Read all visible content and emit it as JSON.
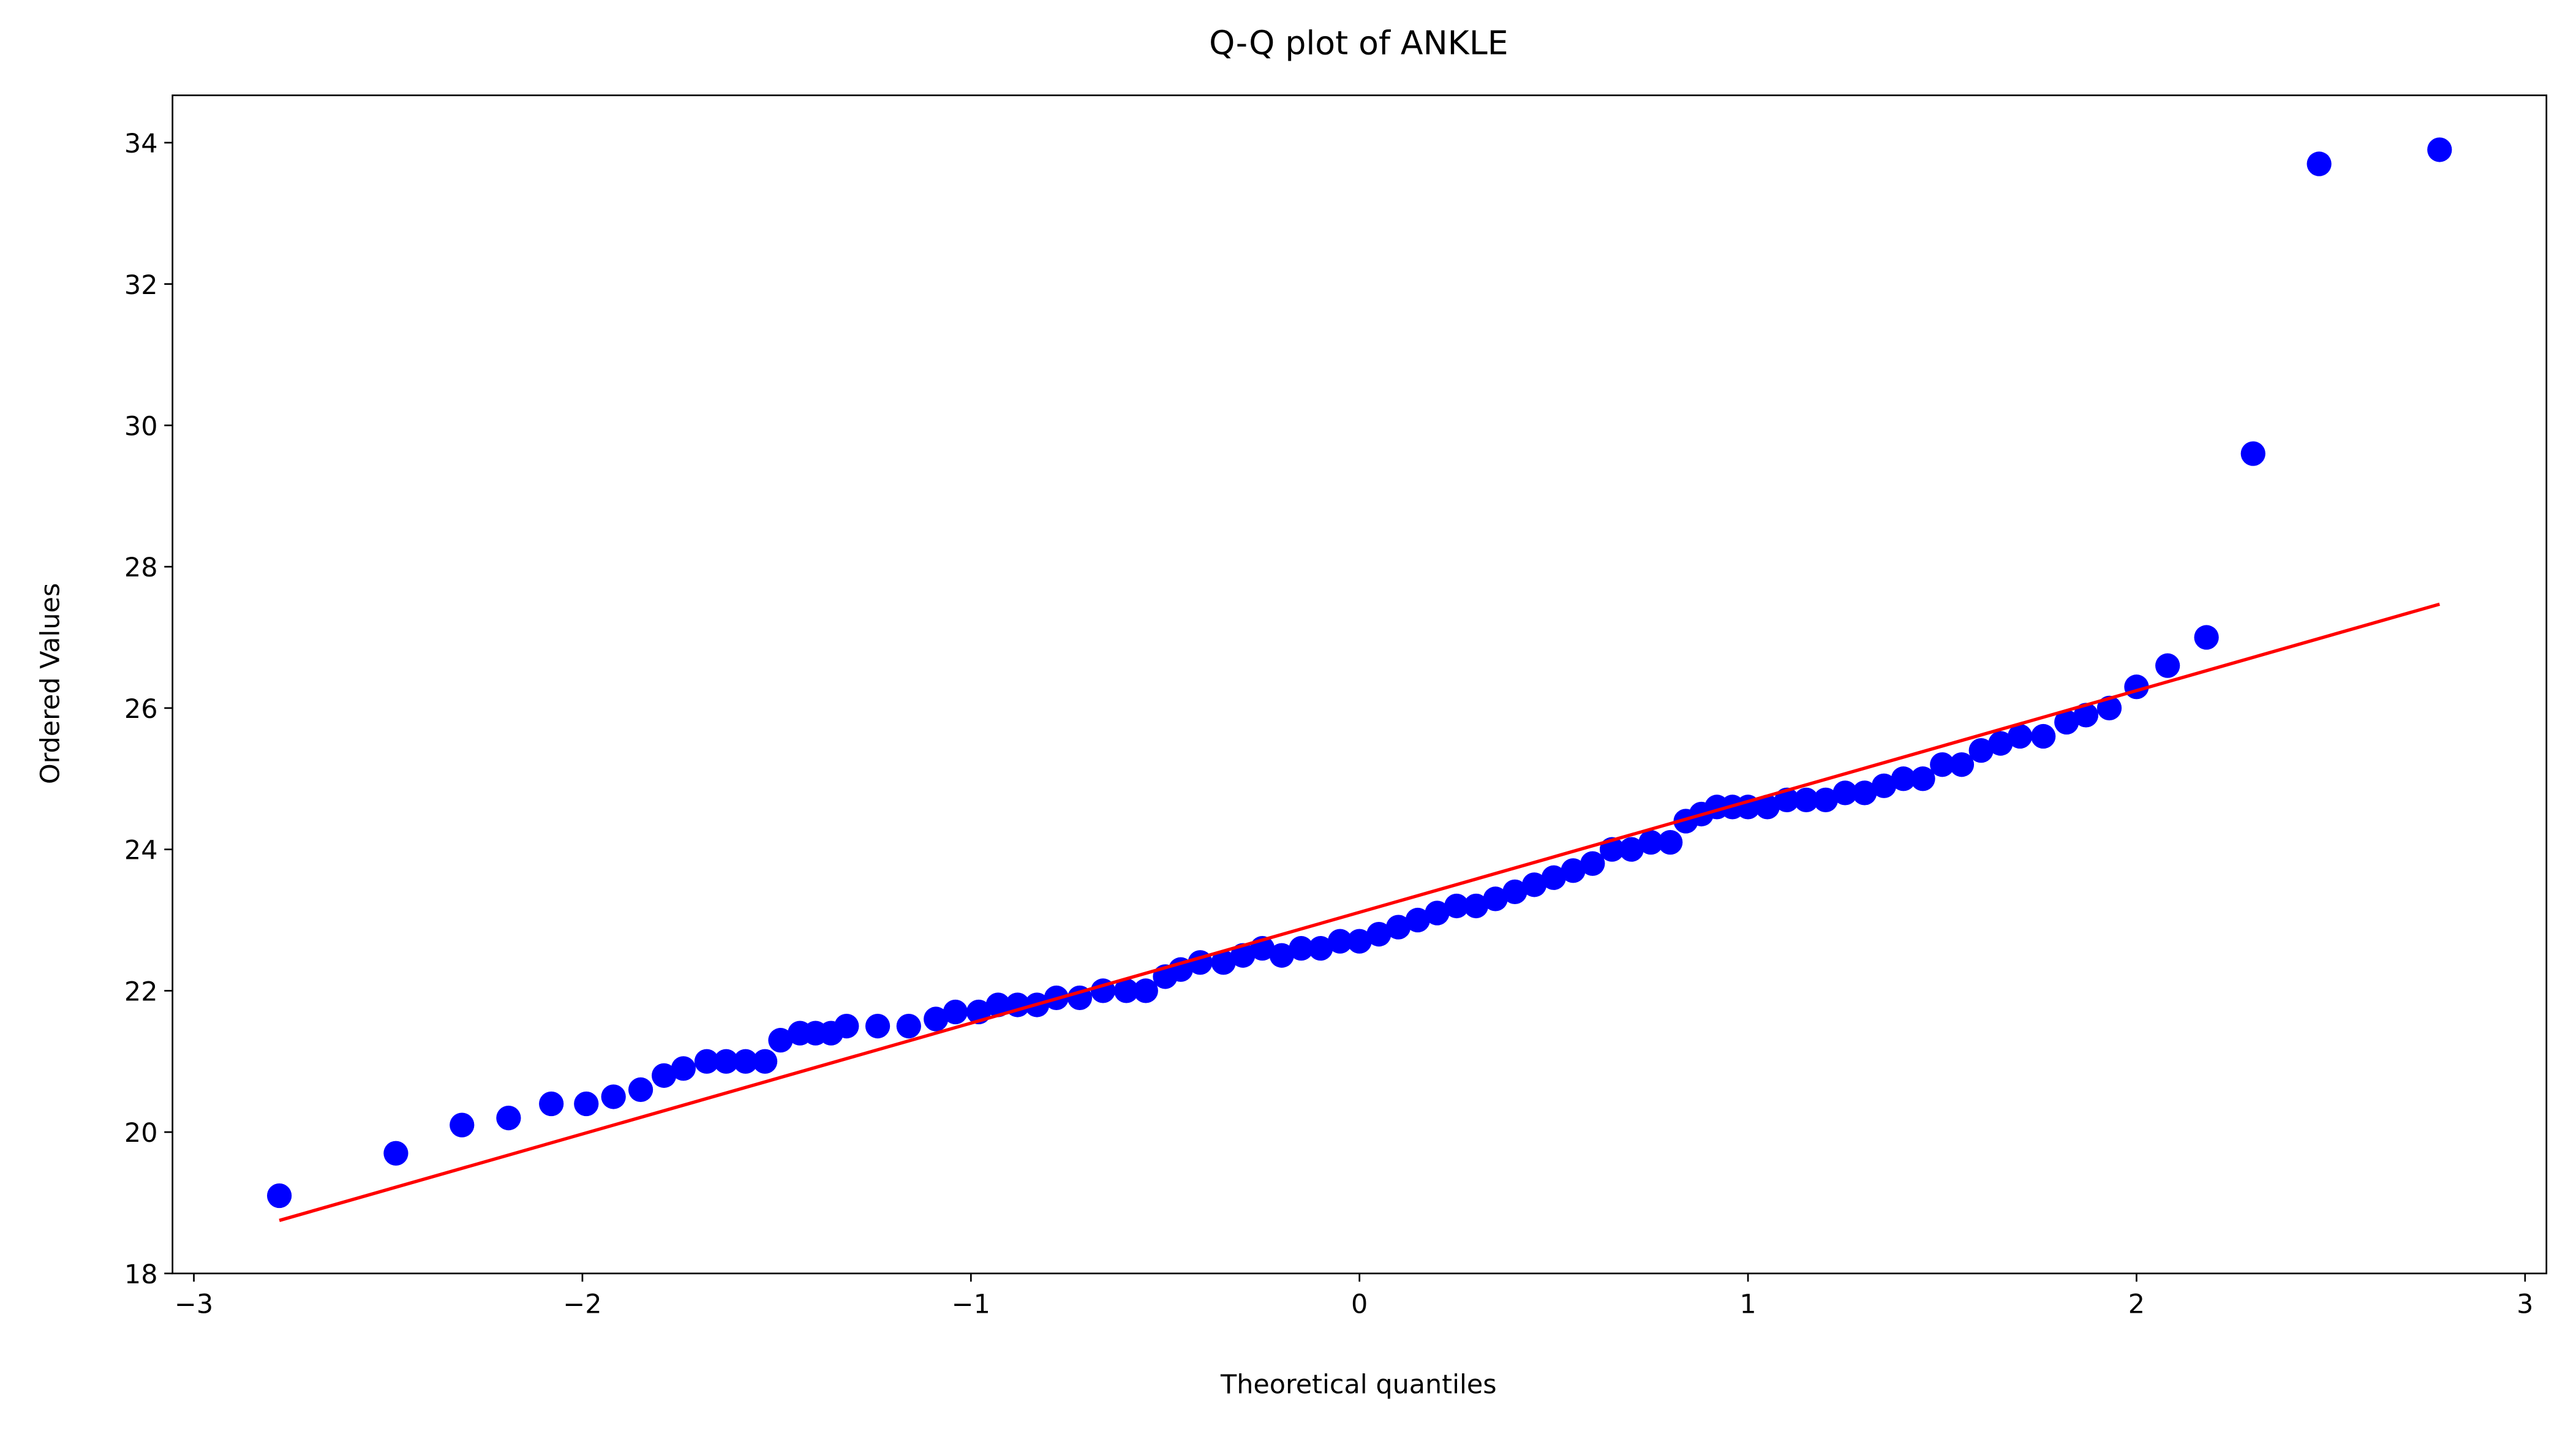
{
  "chart_data": {
    "type": "scatter",
    "title": "Q-Q plot of ANKLE",
    "x_label": "Theoretical quantiles",
    "y_label": "Ordered Values",
    "xlim": [
      -3.055,
      3.055
    ],
    "ylim": [
      18,
      34.67
    ],
    "xticks": [
      {
        "value": -3,
        "label": "−3"
      },
      {
        "value": -2,
        "label": "−2"
      },
      {
        "value": -1,
        "label": "−1"
      },
      0,
      1,
      2,
      3
    ],
    "yticks": [
      18,
      20,
      22,
      24,
      26,
      28,
      30,
      32,
      34
    ],
    "grid": false,
    "series": [
      {
        "type": "scatter",
        "color": "#0000ff",
        "x": [
          -2.78,
          -2.48,
          -2.31,
          -2.19,
          -2.08,
          -1.99,
          -1.92,
          -1.85,
          -1.79,
          -1.74,
          -1.68,
          -1.63,
          -1.58,
          -1.53,
          -1.49,
          -1.44,
          -1.4,
          -1.36,
          -1.32,
          -1.24,
          -1.16,
          -1.09,
          -1.04,
          -0.98,
          -0.93,
          -0.88,
          -0.83,
          -0.78,
          -0.72,
          -0.66,
          -0.6,
          -0.55,
          -0.5,
          -0.46,
          -0.41,
          -0.35,
          -0.3,
          -0.25,
          -0.2,
          -0.15,
          -0.1,
          -0.05,
          0,
          0.05,
          0.1,
          0.15,
          0.2,
          0.25,
          0.3,
          0.35,
          0.4,
          0.45,
          0.5,
          0.55,
          0.6,
          0.65,
          0.7,
          0.75,
          0.8,
          0.84,
          0.88,
          0.92,
          0.96,
          1,
          1.05,
          1.1,
          1.15,
          1.2,
          1.25,
          1.3,
          1.35,
          1.4,
          1.45,
          1.5,
          1.55,
          1.6,
          1.65,
          1.7,
          1.76,
          1.82,
          1.87,
          1.93,
          2,
          2.08,
          2.18,
          2.3,
          2.47,
          2.78
        ],
        "values": [
          19.1,
          19.7,
          20.1,
          20.2,
          20.4,
          20.4,
          20.5,
          20.6,
          20.8,
          20.9,
          21,
          21,
          21,
          21,
          21.3,
          21.4,
          21.4,
          21.4,
          21.5,
          21.5,
          21.5,
          21.6,
          21.7,
          21.7,
          21.8,
          21.8,
          21.8,
          21.9,
          21.9,
          22,
          22,
          22,
          22.2,
          22.3,
          22.4,
          22.4,
          22.5,
          22.6,
          22.5,
          22.6,
          22.6,
          22.7,
          22.7,
          22.8,
          22.9,
          23,
          23.1,
          23.2,
          23.2,
          23.3,
          23.4,
          23.5,
          23.6,
          23.7,
          23.8,
          24,
          24,
          24.1,
          24.1,
          24.4,
          24.5,
          24.6,
          24.6,
          24.6,
          24.6,
          24.7,
          24.7,
          24.7,
          24.8,
          24.8,
          24.9,
          25,
          25,
          25.2,
          25.2,
          25.4,
          25.5,
          25.6,
          25.6,
          25.8,
          25.9,
          26,
          26.3,
          26.6,
          27,
          29.6,
          33.7,
          33.9
        ]
      },
      {
        "type": "line",
        "color": "#ff0000",
        "x": [
          -2.78,
          2.78
        ],
        "values": [
          18.75,
          27.47
        ]
      }
    ]
  }
}
